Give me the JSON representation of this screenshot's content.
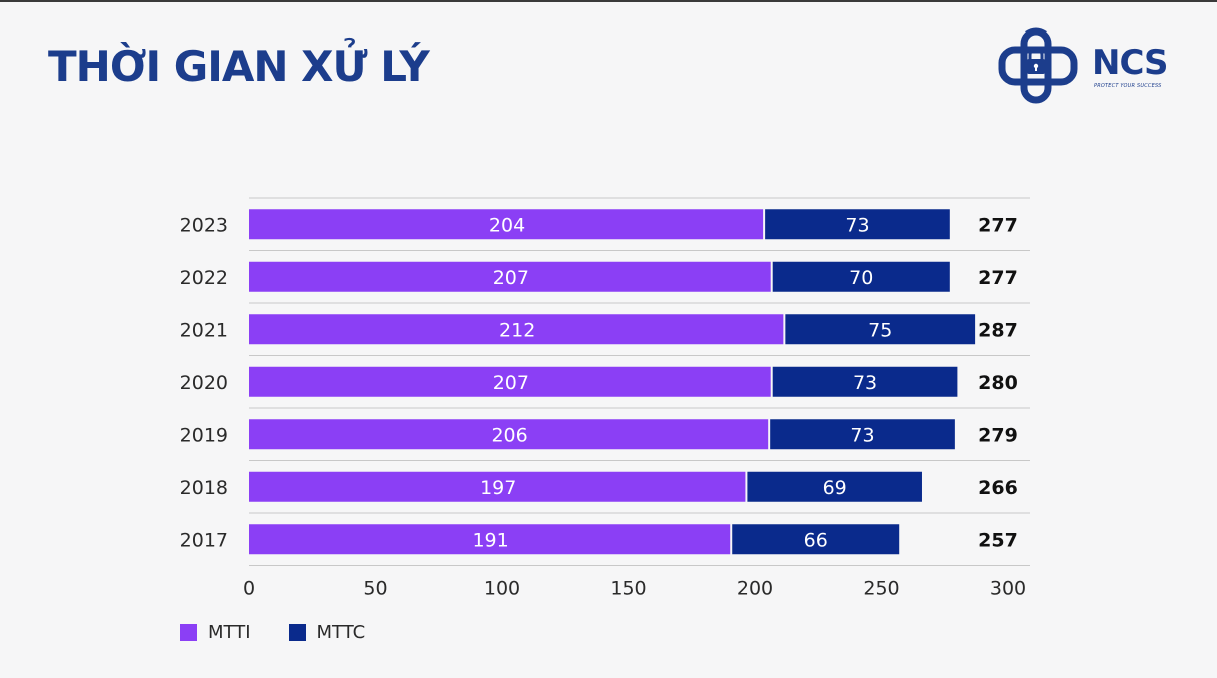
{
  "title": "THỜI GIAN XỬ LÝ",
  "logo": {
    "name": "NCS",
    "tagline": "PROTECT YOUR SUCCESS"
  },
  "colors": {
    "title": "#1c3d8c",
    "MTTI": "#8b3ff5",
    "MTTC": "#0a2a8c",
    "grid": "#c8c8c8"
  },
  "chart_data": {
    "type": "bar",
    "orientation": "horizontal",
    "stacked": true,
    "categories": [
      "2023",
      "2022",
      "2021",
      "2020",
      "2019",
      "2018",
      "2017"
    ],
    "series": [
      {
        "name": "MTTI",
        "values": [
          204,
          207,
          212,
          207,
          206,
          197,
          191
        ]
      },
      {
        "name": "MTTC",
        "values": [
          73,
          70,
          75,
          73,
          73,
          69,
          66
        ]
      }
    ],
    "totals": [
      277,
      277,
      287,
      280,
      279,
      266,
      257
    ],
    "xlim": [
      0,
      300
    ],
    "xticks": [
      0,
      50,
      100,
      150,
      200,
      250,
      300
    ],
    "grid": true,
    "legend": "bottom-left",
    "xlabel": "",
    "ylabel": ""
  }
}
